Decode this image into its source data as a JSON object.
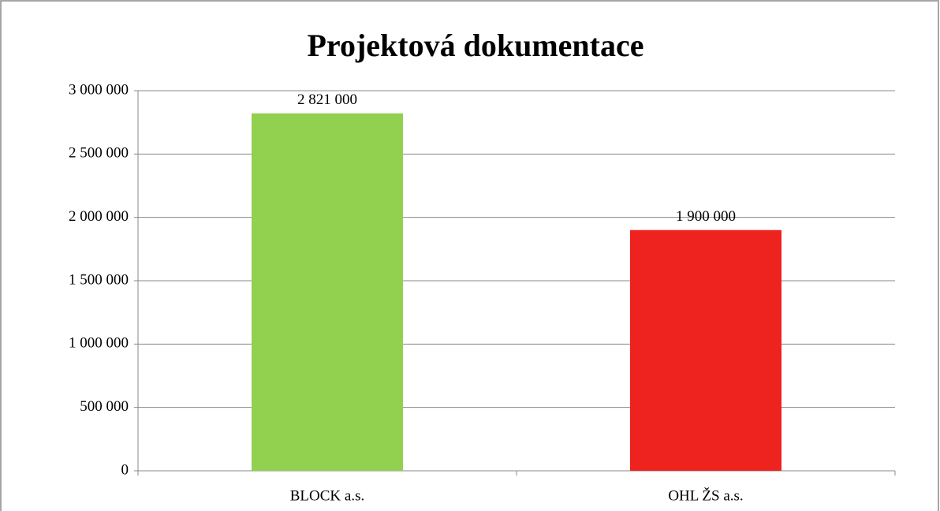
{
  "chart_data": {
    "type": "bar",
    "title": "Projektová dokumentace",
    "categories": [
      "BLOCK a.s.",
      "OHL ŽS a.s."
    ],
    "values": [
      2821000,
      1900000
    ],
    "value_labels": [
      "2 821 000",
      "1 900 000"
    ],
    "colors": [
      "#92d050",
      "#ee2320"
    ],
    "ylim": [
      0,
      3000000
    ],
    "yticks": [
      0,
      {
        "value": 500000,
        "label": "500 000"
      },
      {
        "value": 1000000,
        "label": "1 000 000"
      },
      {
        "value": 1500000,
        "label": "1 500 000"
      },
      {
        "value": 2000000,
        "label": "2 000 000"
      },
      {
        "value": 2500000,
        "label": "2 500 000"
      },
      {
        "value": 3000000,
        "label": "3 000 000"
      }
    ],
    "grid": true
  }
}
